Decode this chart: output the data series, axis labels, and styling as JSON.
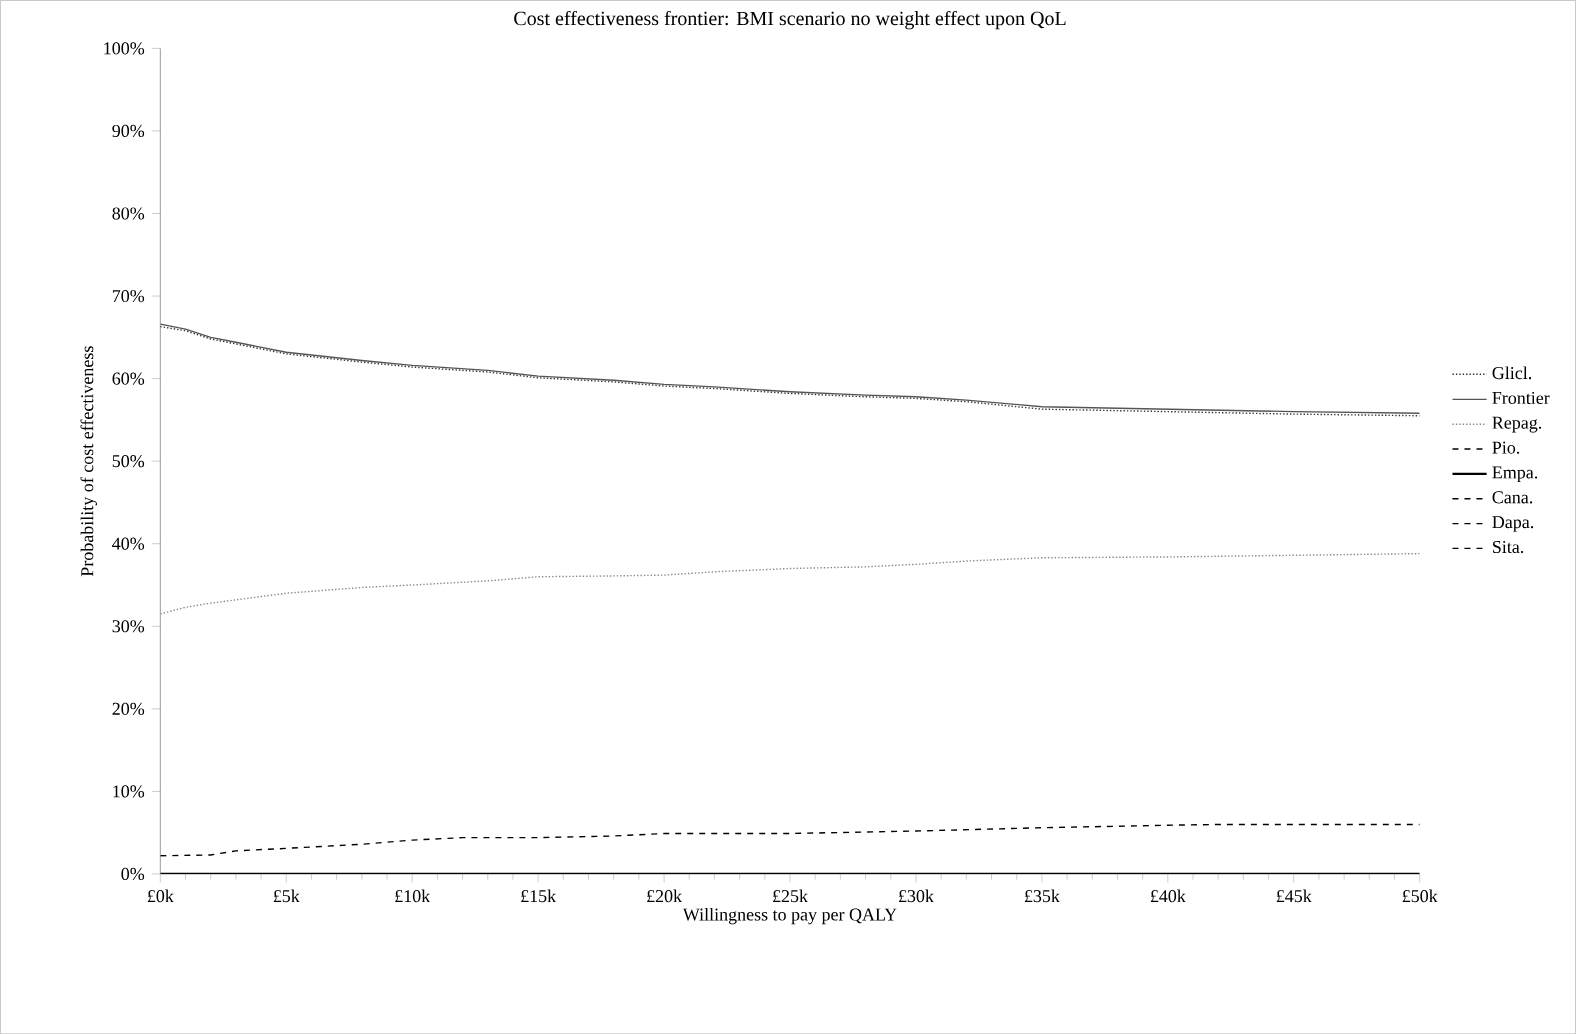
{
  "chart_data": {
    "type": "line",
    "title": "Cost effectiveness frontier: BMI scenario no weight effect upon QoL",
    "xlabel": "Willingness to pay per QALY",
    "ylabel": "Probability of cost effectiveness",
    "xlim": [
      0,
      50
    ],
    "ylim": [
      0,
      100
    ],
    "xticks": [
      {
        "value": 0,
        "label": "£0k"
      },
      {
        "value": 5,
        "label": "£5k"
      },
      {
        "value": 10,
        "label": "£10k"
      },
      {
        "value": 15,
        "label": "£15k"
      },
      {
        "value": 20,
        "label": "£20k"
      },
      {
        "value": 25,
        "label": "£25k"
      },
      {
        "value": 30,
        "label": "£30k"
      },
      {
        "value": 35,
        "label": "£35k"
      },
      {
        "value": 40,
        "label": "£40k"
      },
      {
        "value": 45,
        "label": "£45k"
      },
      {
        "value": 50,
        "label": "£50k"
      }
    ],
    "yticks": [
      {
        "value": 0,
        "label": "0%"
      },
      {
        "value": 10,
        "label": "10%"
      },
      {
        "value": 20,
        "label": "20%"
      },
      {
        "value": 30,
        "label": "30%"
      },
      {
        "value": 40,
        "label": "40%"
      },
      {
        "value": 50,
        "label": "50%"
      },
      {
        "value": 60,
        "label": "60%"
      },
      {
        "value": 70,
        "label": "70%"
      },
      {
        "value": 80,
        "label": "80%"
      },
      {
        "value": 90,
        "label": "90%"
      },
      {
        "value": 100,
        "label": "100%"
      }
    ],
    "grid": false,
    "legend": "right",
    "marker": "none",
    "series": [
      {
        "name": "Glicl.",
        "color": "#333333",
        "line_style": "dotted",
        "x": [
          0,
          1,
          2,
          3,
          5,
          8,
          10,
          13,
          15,
          18,
          20,
          22,
          25,
          28,
          30,
          32,
          35,
          40,
          45,
          50
        ],
        "values": [
          66.3,
          65.8,
          64.8,
          64.2,
          63,
          62,
          61.4,
          60.8,
          60.1,
          59.6,
          59.1,
          58.8,
          58.2,
          57.8,
          57.6,
          57.2,
          56.3,
          56,
          55.7,
          55.5
        ]
      },
      {
        "name": "Frontier",
        "color": "#555555",
        "line_style": "solid",
        "x": [
          0,
          1,
          2,
          3,
          5,
          8,
          10,
          13,
          15,
          18,
          20,
          22,
          25,
          28,
          30,
          32,
          35,
          40,
          45,
          50
        ],
        "values": [
          66.6,
          66,
          65,
          64.4,
          63.2,
          62.2,
          61.6,
          61,
          60.3,
          59.8,
          59.3,
          59,
          58.4,
          58,
          57.8,
          57.4,
          56.6,
          56.3,
          56,
          55.8
        ]
      },
      {
        "name": "Repag.",
        "color": "#888888",
        "line_style": "dotted",
        "x": [
          0,
          1,
          2,
          3,
          5,
          8,
          10,
          13,
          15,
          18,
          20,
          22,
          25,
          28,
          30,
          32,
          35,
          40,
          45,
          50
        ],
        "values": [
          31.5,
          32.3,
          32.8,
          33.2,
          34,
          34.7,
          35,
          35.5,
          36,
          36.1,
          36.2,
          36.6,
          37,
          37.2,
          37.5,
          37.9,
          38.3,
          38.4,
          38.6,
          38.8
        ]
      },
      {
        "name": "Pio.",
        "color": "#000000",
        "line_style": "dashed",
        "x": [
          0,
          2,
          3,
          5,
          8,
          10,
          12,
          15,
          18,
          20,
          25,
          30,
          35,
          40,
          42,
          50
        ],
        "values": [
          2.2,
          2.3,
          2.8,
          3.1,
          3.6,
          4.1,
          4.4,
          4.4,
          4.6,
          4.9,
          4.9,
          5.2,
          5.6,
          5.9,
          6,
          6
        ]
      },
      {
        "name": "Empa.",
        "color": "#000000",
        "line_style": "solid",
        "x": [
          0,
          50
        ],
        "values": [
          0,
          0
        ]
      },
      {
        "name": "Cana.",
        "color": "#000000",
        "line_style": "dashed"
      },
      {
        "name": "Dapa.",
        "color": "#000000",
        "line_style": "dashed"
      },
      {
        "name": "Sita.",
        "color": "#000000",
        "line_style": "dashed"
      }
    ]
  }
}
